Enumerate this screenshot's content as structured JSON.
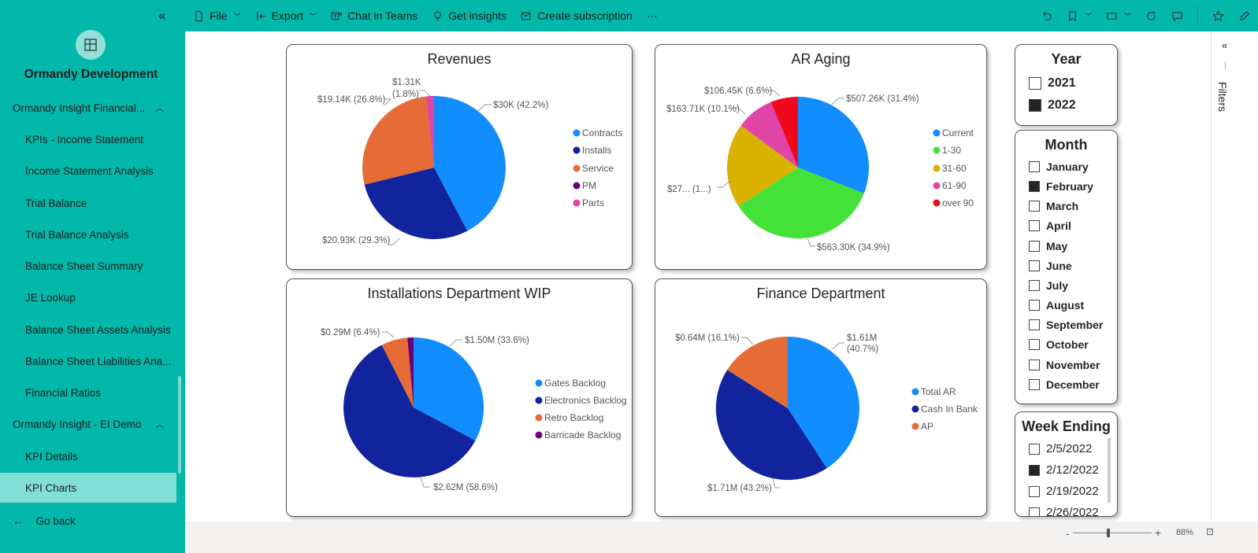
{
  "sidebar": {
    "workspace_name": "Ormandy Development",
    "groups": [
      {
        "label": "Ormandy Insight Financial...",
        "items": [
          "KPIs - Income Statement",
          "Income Statement Analysis",
          "Trial Balance",
          "Trial Balance Analysis",
          "Balance Sheet Summary",
          "JE Lookup",
          "Balance Sheet Assets Analysis",
          "Balance Sheet Liabilities Ana...",
          "Financial Ratios"
        ]
      },
      {
        "label": "Ormandy Insight - EI Demo",
        "items": [
          "KPI Details",
          "KPI Charts"
        ]
      }
    ],
    "active_item": "KPI Charts",
    "go_back": "Go back"
  },
  "toolbar": {
    "file": "File",
    "export": "Export",
    "chat_in_teams": "Chat in Teams",
    "get_insights": "Get insights",
    "create_subscription": "Create subscription",
    "more": "···"
  },
  "charts": {
    "revenues": {
      "title": "Revenues",
      "legend": [
        "Contracts",
        "Installs",
        "Service",
        "PM",
        "Parts"
      ],
      "colors": [
        "#118dff",
        "#12239e",
        "#e66c37",
        "#6b007b",
        "#e044a7"
      ],
      "labels": [
        "$30K (42.2%)",
        "$20.93K (29.3%)",
        "$19.14K (26.8%)",
        "$1.31K",
        "(1.8%)"
      ]
    },
    "ar_aging": {
      "title": "AR Aging",
      "legend": [
        "Current",
        "1-30",
        "31-60",
        "61-90",
        "over 90"
      ],
      "colors": [
        "#118dff",
        "#44e238",
        "#d9b300",
        "#e044a7",
        "#f0091c"
      ],
      "labels": [
        "$507.26K (31.4%)",
        "$563.30K (34.9%)",
        "$27... (1...)",
        "$163.71K (10.1%)",
        "$106.45K (6.6%)"
      ]
    },
    "installations": {
      "title": "Installations Department WIP",
      "legend": [
        "Gates Backlog",
        "Electronics Backlog",
        "Retro Backlog",
        "Barricade Backlog"
      ],
      "colors": [
        "#118dff",
        "#12239e",
        "#e66c37",
        "#6b007b"
      ],
      "labels": [
        "$1.50M (33.6%)",
        "$2.62M (58.6%)",
        "$0.29M (6.4%)"
      ]
    },
    "finance": {
      "title": "Finance Department",
      "legend": [
        "Total AR",
        "Cash In Bank",
        "AP"
      ],
      "colors": [
        "#118dff",
        "#12239e",
        "#e66c37"
      ],
      "labels": [
        "$1.61M",
        "(40.7%)",
        "$1.71M (43.2%)",
        "$0.64M (16.1%)"
      ]
    }
  },
  "chart_data": [
    {
      "type": "pie",
      "title": "Revenues",
      "categories": [
        "Contracts",
        "Installs",
        "Service",
        "PM",
        "Parts"
      ],
      "values": [
        42.2,
        29.3,
        26.8,
        0,
        1.8
      ],
      "unit": "%"
    },
    {
      "type": "pie",
      "title": "AR Aging",
      "categories": [
        "Current",
        "1-30",
        "31-60",
        "61-90",
        "over 90"
      ],
      "values": [
        31.4,
        34.9,
        17.0,
        10.1,
        6.6
      ],
      "unit": "%"
    },
    {
      "type": "pie",
      "title": "Installations Department WIP",
      "categories": [
        "Gates Backlog",
        "Electronics Backlog",
        "Retro Backlog",
        "Barricade Backlog"
      ],
      "values": [
        33.6,
        58.6,
        6.4,
        1.4
      ],
      "unit": "%"
    },
    {
      "type": "pie",
      "title": "Finance Department",
      "categories": [
        "Total AR",
        "Cash In Bank",
        "AP"
      ],
      "values": [
        40.7,
        43.2,
        16.1
      ],
      "unit": "%"
    }
  ],
  "slicers": {
    "year": {
      "title": "Year",
      "options": [
        {
          "label": "2021",
          "checked": false
        },
        {
          "label": "2022",
          "checked": true
        }
      ]
    },
    "month": {
      "title": "Month",
      "options": [
        {
          "label": "January",
          "checked": false
        },
        {
          "label": "February",
          "checked": true
        },
        {
          "label": "March",
          "checked": false
        },
        {
          "label": "April",
          "checked": false
        },
        {
          "label": "May",
          "checked": false
        },
        {
          "label": "June",
          "checked": false
        },
        {
          "label": "July",
          "checked": false
        },
        {
          "label": "August",
          "checked": false
        },
        {
          "label": "September",
          "checked": false
        },
        {
          "label": "October",
          "checked": false
        },
        {
          "label": "November",
          "checked": false
        },
        {
          "label": "December",
          "checked": false
        }
      ]
    },
    "week": {
      "title": "Week Ending",
      "options": [
        {
          "label": "2/5/2022",
          "checked": false
        },
        {
          "label": "2/12/2022",
          "checked": true
        },
        {
          "label": "2/19/2022",
          "checked": false
        },
        {
          "label": "2/26/2022",
          "checked": false
        }
      ]
    }
  },
  "filters_label": "Filters",
  "status": {
    "zoom": "88%",
    "minus": "-",
    "plus": "+"
  }
}
